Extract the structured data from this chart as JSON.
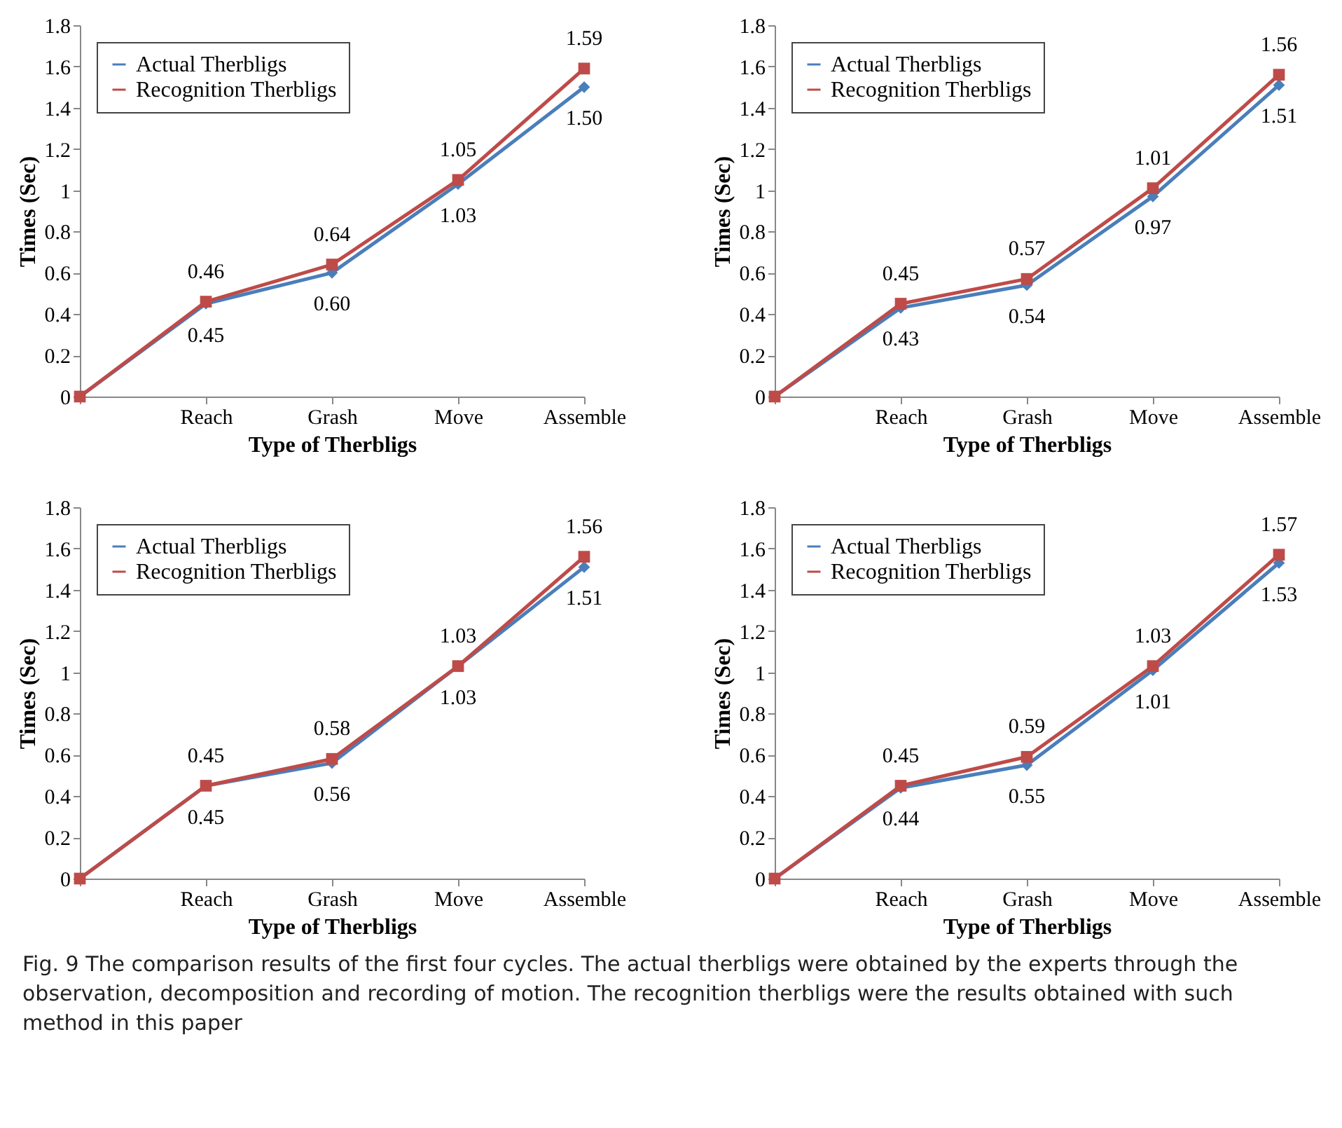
{
  "chart_data": [
    {
      "type": "line",
      "categories": [
        null,
        "Reach",
        "Grash",
        "Move",
        "Assemble"
      ],
      "xlabel": "Type of Therbligs",
      "ylabel": "Times (Sec)",
      "ylim": [
        0,
        1.8
      ],
      "yticks": [
        0,
        0.2,
        0.4,
        0.6,
        0.8,
        1,
        1.2,
        1.4,
        1.6,
        1.8
      ],
      "grid": false,
      "legend": "top left",
      "series": [
        {
          "name": "Actual Therbligs",
          "color": "#4a7ebb",
          "marker": "diamond",
          "values": [
            0,
            0.45,
            0.6,
            1.03,
            1.5
          ],
          "value_labels": [
            null,
            "0.45",
            "0.60",
            "1.03",
            "1.50"
          ]
        },
        {
          "name": "Recognition Therbligs",
          "color": "#be4b48",
          "marker": "square",
          "values": [
            0,
            0.46,
            0.64,
            1.05,
            1.59
          ],
          "value_labels": [
            null,
            "0.46",
            "0.64",
            "1.05",
            "1.59"
          ]
        }
      ]
    },
    {
      "type": "line",
      "categories": [
        null,
        "Reach",
        "Grash",
        "Move",
        "Assemble"
      ],
      "xlabel": "Type of Therbligs",
      "ylabel": "Times (Sec)",
      "ylim": [
        0,
        1.8
      ],
      "yticks": [
        0,
        0.2,
        0.4,
        0.6,
        0.8,
        1,
        1.2,
        1.4,
        1.6,
        1.8
      ],
      "grid": false,
      "legend": "top left",
      "series": [
        {
          "name": "Actual Therbligs",
          "color": "#4a7ebb",
          "marker": "diamond",
          "values": [
            0,
            0.43,
            0.54,
            0.97,
            1.51
          ],
          "value_labels": [
            null,
            "0.43",
            "0.54",
            "0.97",
            "1.51"
          ]
        },
        {
          "name": "Recognition Therbligs",
          "color": "#be4b48",
          "marker": "square",
          "values": [
            0,
            0.45,
            0.57,
            1.01,
            1.56
          ],
          "value_labels": [
            null,
            "0.45",
            "0.57",
            "1.01",
            "1.56"
          ]
        }
      ]
    },
    {
      "type": "line",
      "categories": [
        null,
        "Reach",
        "Grash",
        "Move",
        "Assemble"
      ],
      "xlabel": "Type of Therbligs",
      "ylabel": "Times (Sec)",
      "ylim": [
        0,
        1.8
      ],
      "yticks": [
        0,
        0.2,
        0.4,
        0.6,
        0.8,
        1,
        1.2,
        1.4,
        1.6,
        1.8
      ],
      "grid": false,
      "legend": "top left",
      "series": [
        {
          "name": "Actual Therbligs",
          "color": "#4a7ebb",
          "marker": "diamond",
          "values": [
            0,
            0.45,
            0.56,
            1.03,
            1.51
          ],
          "value_labels": [
            null,
            "0.45",
            "0.56",
            "1.03",
            "1.51"
          ]
        },
        {
          "name": "Recognition Therbligs",
          "color": "#be4b48",
          "marker": "square",
          "values": [
            0,
            0.45,
            0.58,
            1.03,
            1.56
          ],
          "value_labels": [
            null,
            "0.45",
            "0.58",
            "1.03",
            "1.56"
          ]
        }
      ]
    },
    {
      "type": "line",
      "categories": [
        null,
        "Reach",
        "Grash",
        "Move",
        "Assemble"
      ],
      "xlabel": "Type of Therbligs",
      "ylabel": "Times (Sec)",
      "ylim": [
        0,
        1.8
      ],
      "yticks": [
        0,
        0.2,
        0.4,
        0.6,
        0.8,
        1,
        1.2,
        1.4,
        1.6,
        1.8
      ],
      "grid": false,
      "legend": "top left",
      "annotations": [
        "Fig. 9  The comparison results of the first four cycles. The actual therbligs were obtained by the experts through the observation, decomposition and recording of motion. The recognition therbligs were the results obtained with such method in this paper"
      ],
      "series": [
        {
          "name": "Actual Therbligs",
          "color": "#4a7ebb",
          "marker": "diamond",
          "values": [
            0,
            0.44,
            0.55,
            1.01,
            1.53
          ],
          "value_labels": [
            null,
            "0.44",
            "0.55",
            "1.01",
            "1.53"
          ]
        },
        {
          "name": "Recognition Therbligs",
          "color": "#be4b48",
          "marker": "square",
          "values": [
            0,
            0.45,
            0.59,
            1.03,
            1.57
          ],
          "value_labels": [
            null,
            "0.45",
            "0.59",
            "1.03",
            "1.57"
          ]
        }
      ]
    }
  ]
}
